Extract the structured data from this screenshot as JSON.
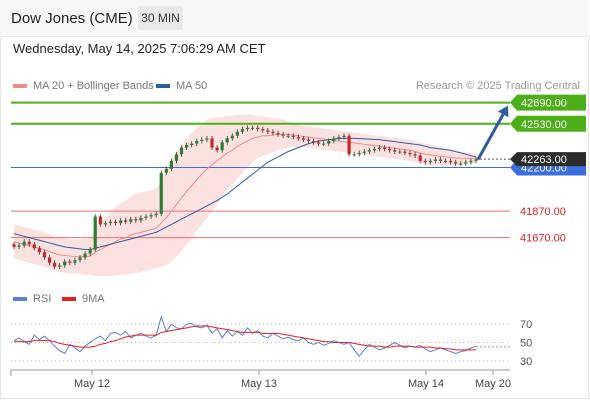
{
  "header": {
    "title": "Dow Jones (CME)",
    "timeframe": "30 MIN"
  },
  "datetime": "Wednesday, May 14, 2025 7:06:29 AM CET",
  "legend": {
    "ma20": {
      "label": "MA 20 + Bollinger Bands",
      "color": "#f08a8a"
    },
    "ma50": {
      "label": "MA 50",
      "color": "#2f5c9e"
    }
  },
  "credit": "Research © 2025 Trading Central",
  "rsi_legend": {
    "rsi": {
      "label": "RSI",
      "color": "#5b7fd1"
    },
    "ma9": {
      "label": "9MA",
      "color": "#e02020"
    }
  },
  "chart_data": [
    {
      "type": "candlestick",
      "y_range": [
        41350,
        42740
      ],
      "x_ticks": [
        "May 12",
        "May 13",
        "May 14",
        "May 20"
      ],
      "current_price": {
        "label": "42263.00",
        "value": 42263
      },
      "levels": [
        {
          "label": "42690.00",
          "value": 42690,
          "kind": "resistance"
        },
        {
          "label": "42530.00",
          "value": 42530,
          "kind": "resistance"
        },
        {
          "label": "42200.00",
          "value": 42200,
          "kind": "pivot"
        },
        {
          "label": "41870.00",
          "value": 41870,
          "kind": "support"
        },
        {
          "label": "41670.00",
          "value": 41670,
          "kind": "support"
        }
      ],
      "colors": {
        "resistance": "#4caf1a",
        "pivot": "#3b6fe0",
        "support": "#e87070",
        "up": "#2e7d32",
        "down": "#c62828",
        "band": "#fbd7d7"
      },
      "close": [
        41600,
        41610,
        41640,
        41620,
        41590,
        41560,
        41520,
        41480,
        41450,
        41460,
        41490,
        41480,
        41500,
        41520,
        41550,
        41580,
        41830,
        41770,
        41780,
        41790,
        41780,
        41800,
        41790,
        41810,
        41800,
        41820,
        41830,
        41840,
        41850,
        42160,
        42190,
        42250,
        42300,
        42350,
        42370,
        42380,
        42400,
        42410,
        42420,
        42350,
        42330,
        42390,
        42420,
        42440,
        42470,
        42490,
        42500,
        42500,
        42490,
        42480,
        42470,
        42460,
        42450,
        42440,
        42440,
        42430,
        42420,
        42410,
        42400,
        42390,
        42380,
        42380,
        42400,
        42420,
        42430,
        42440,
        42300,
        42300,
        42310,
        42320,
        42330,
        42340,
        42350,
        42340,
        42330,
        42320,
        42320,
        42310,
        42300,
        42290,
        42250,
        42240,
        42250,
        42260,
        42250,
        42250,
        42240,
        42230,
        42230,
        42240,
        42250,
        42260
      ],
      "ma20": [
        41640,
        41630,
        41620,
        41610,
        41600,
        41590,
        41580,
        41565,
        41550,
        41540,
        41535,
        41530,
        41528,
        41526,
        41526,
        41530,
        41560,
        41580,
        41600,
        41620,
        41640,
        41660,
        41670,
        41690,
        41700,
        41710,
        41720,
        41730,
        41740,
        41780,
        41820,
        41870,
        41920,
        41970,
        42020,
        42060,
        42110,
        42150,
        42190,
        42220,
        42250,
        42280,
        42310,
        42330,
        42360,
        42380,
        42400,
        42420,
        42430,
        42440,
        42440,
        42445,
        42450,
        42450,
        42450,
        42445,
        42440,
        42435,
        42430,
        42425,
        42420,
        42415,
        42410,
        42405,
        42400,
        42395,
        42390,
        42385,
        42380,
        42375,
        42370,
        42365,
        42360,
        42355,
        42350,
        42345,
        42340,
        42335,
        42330,
        42320,
        42310,
        42300,
        42295,
        42290,
        42285,
        42280,
        42275,
        42272,
        42270,
        42270,
        42270,
        42270
      ],
      "ma50": [
        41700,
        41690,
        41680,
        41670,
        41660,
        41650,
        41640,
        41630,
        41620,
        41610,
        41600,
        41595,
        41590,
        41585,
        41580,
        41580,
        41590,
        41600,
        41610,
        41620,
        41630,
        41640,
        41650,
        41660,
        41670,
        41680,
        41690,
        41700,
        41710,
        41730,
        41750,
        41770,
        41790,
        41810,
        41830,
        41850,
        41870,
        41890,
        41910,
        41930,
        41950,
        41975,
        42000,
        42030,
        42060,
        42090,
        42120,
        42150,
        42180,
        42210,
        42240,
        42260,
        42280,
        42300,
        42320,
        42335,
        42350,
        42365,
        42380,
        42390,
        42400,
        42405,
        42410,
        42415,
        42420,
        42420,
        42420,
        42420,
        42418,
        42416,
        42414,
        42412,
        42410,
        42405,
        42400,
        42395,
        42390,
        42385,
        42380,
        42375,
        42370,
        42360,
        42350,
        42345,
        42340,
        42335,
        42330,
        42320,
        42310,
        42300,
        42290,
        42280
      ],
      "band_width": [
        130,
        130,
        130,
        130,
        130,
        130,
        130,
        130,
        130,
        130,
        130,
        130,
        130,
        130,
        135,
        140,
        180,
        200,
        220,
        240,
        260,
        270,
        280,
        290,
        300,
        300,
        300,
        300,
        300,
        330,
        360,
        380,
        390,
        400,
        400,
        400,
        390,
        380,
        370,
        350,
        330,
        300,
        280,
        260,
        240,
        220,
        200,
        180,
        160,
        150,
        140,
        130,
        120,
        110,
        100,
        90,
        85,
        80,
        80,
        80,
        80,
        80,
        80,
        80,
        80,
        80,
        80,
        80,
        80,
        80,
        80,
        80,
        80,
        80,
        80,
        80,
        80,
        80,
        80,
        80,
        80,
        80,
        80,
        75,
        70,
        65,
        60,
        55,
        50,
        45,
        40,
        40
      ]
    },
    {
      "type": "line",
      "y_range": [
        20,
        80
      ],
      "y_ticks": [
        70,
        50,
        30
      ],
      "rsi": [
        52,
        55,
        51,
        48,
        58,
        53,
        57,
        52,
        46,
        41,
        38,
        48,
        44,
        40,
        46,
        50,
        54,
        57,
        52,
        60,
        61,
        58,
        62,
        55,
        58,
        60,
        57,
        55,
        58,
        78,
        62,
        70,
        66,
        65,
        70,
        71,
        67,
        66,
        69,
        60,
        65,
        55,
        63,
        57,
        62,
        58,
        66,
        60,
        63,
        57,
        55,
        60,
        57,
        54,
        56,
        53,
        52,
        55,
        50,
        48,
        50,
        47,
        49,
        52,
        50,
        48,
        50,
        42,
        35,
        42,
        48,
        45,
        42,
        44,
        47,
        50,
        47,
        44,
        46,
        45,
        47,
        43,
        40,
        42,
        44,
        42,
        40,
        38,
        40,
        41,
        44,
        46
      ],
      "ma9": [
        51,
        51,
        51,
        51,
        52,
        52,
        52,
        52,
        51,
        49,
        48,
        47,
        46,
        45,
        45,
        45,
        46,
        48,
        49,
        51,
        52,
        54,
        56,
        57,
        58,
        58,
        58,
        58,
        58,
        61,
        62,
        63,
        64,
        65,
        66,
        67,
        68,
        68,
        68,
        67,
        66,
        65,
        64,
        63,
        62,
        61,
        61,
        61,
        61,
        60,
        60,
        60,
        60,
        59,
        58,
        57,
        56,
        55,
        54,
        53,
        52,
        51,
        51,
        50,
        50,
        50,
        50,
        49,
        48,
        47,
        46,
        46,
        46,
        45,
        45,
        46,
        46,
        46,
        46,
        45,
        45,
        45,
        45,
        44,
        44,
        43,
        43,
        42,
        42,
        42,
        42,
        42
      ]
    }
  ]
}
